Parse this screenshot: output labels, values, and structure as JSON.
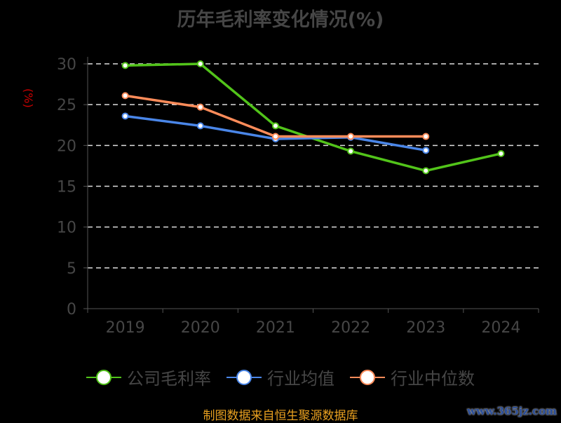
{
  "chart_data": {
    "type": "line",
    "title": "历年毛利率变化情况(%)",
    "ylabel": "(%)",
    "xlabel": "",
    "categories": [
      "2019",
      "2020",
      "2021",
      "2022",
      "2023",
      "2024"
    ],
    "ylim": [
      0,
      30
    ],
    "yticks": [
      0,
      5,
      10,
      15,
      20,
      25,
      30
    ],
    "grid": true,
    "legend_position": "bottom",
    "series": [
      {
        "name": "公司毛利率",
        "color": "#52c41a",
        "values": [
          29.8,
          30.0,
          22.4,
          19.3,
          16.9,
          19.0
        ]
      },
      {
        "name": "行业均值",
        "color": "#4a86e8",
        "values": [
          23.6,
          22.4,
          20.8,
          21.0,
          19.4,
          null
        ]
      },
      {
        "name": "行业中位数",
        "color": "#ff8c5a",
        "values": [
          26.1,
          24.7,
          21.1,
          21.1,
          21.1,
          null
        ]
      }
    ]
  },
  "footer": {
    "source": "制图数据来自恒生聚源数据库",
    "watermark": "www.365jz.com"
  }
}
